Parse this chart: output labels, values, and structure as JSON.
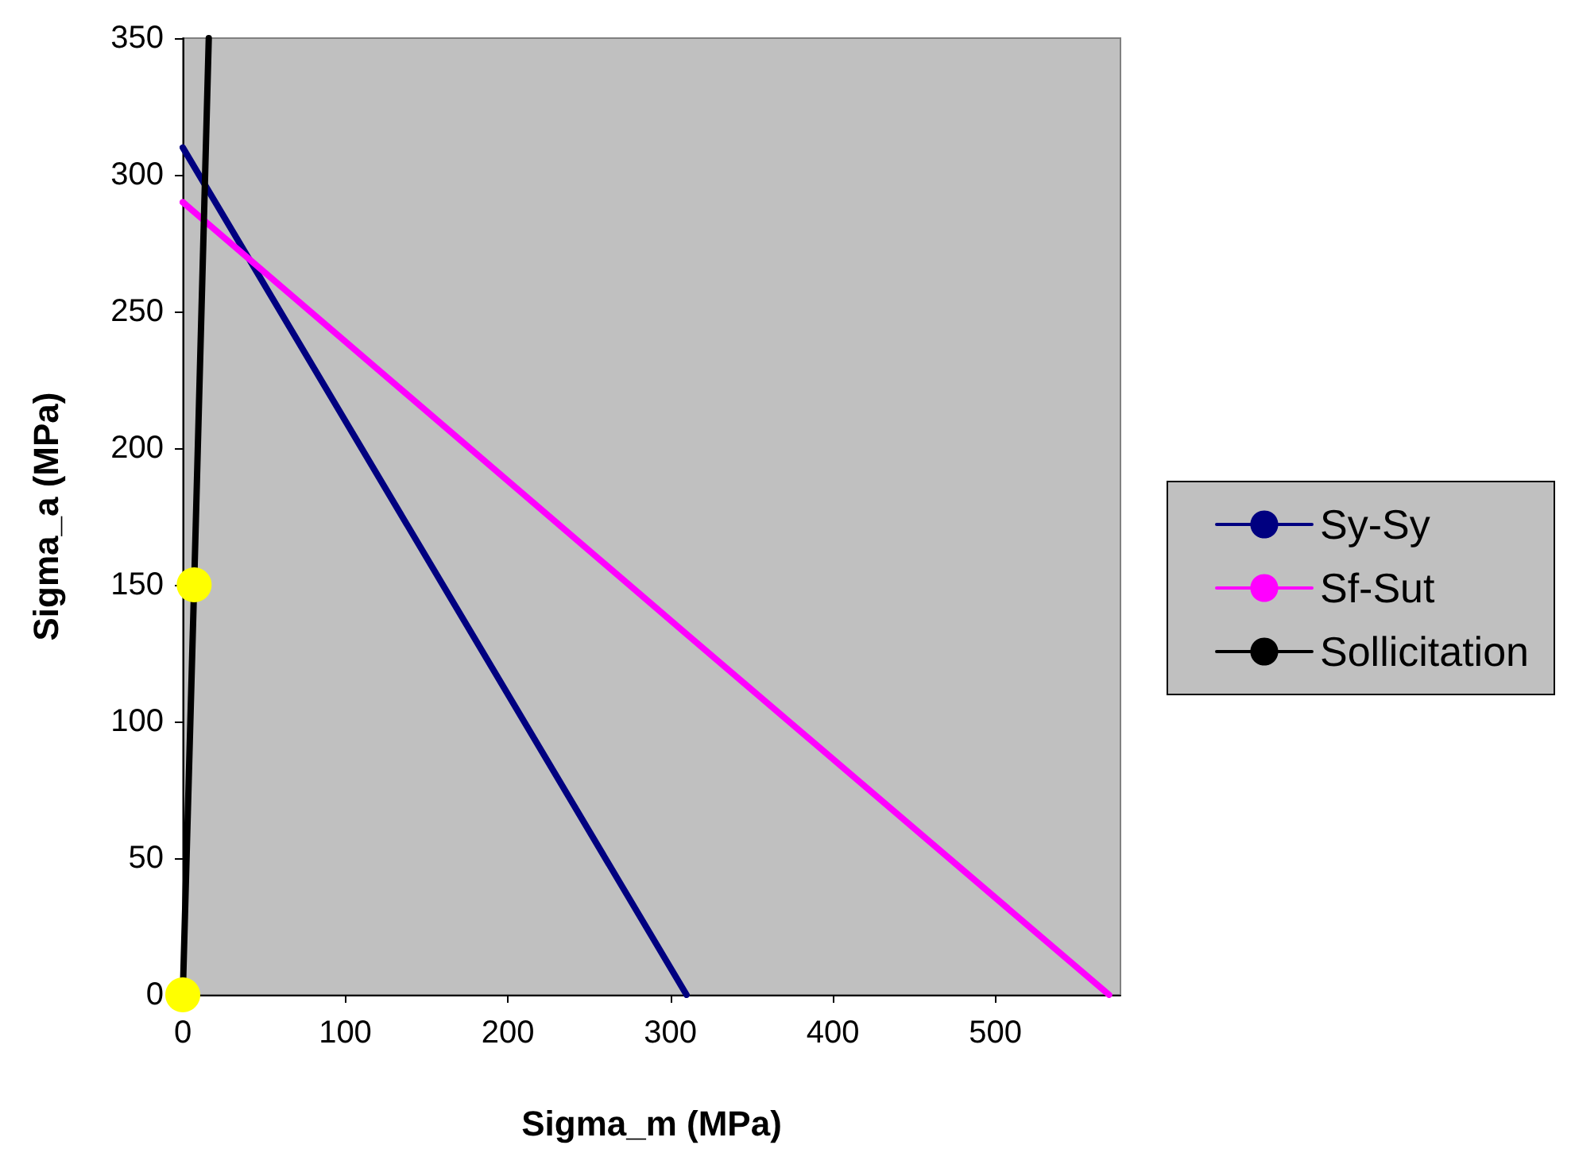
{
  "chart_data": {
    "type": "line",
    "xlabel": "Sigma_m (MPa)",
    "ylabel": "Sigma_a (MPa)",
    "xlim": [
      0,
      577
    ],
    "xticks": [
      0,
      100,
      200,
      300,
      400,
      500
    ],
    "ylim": [
      0,
      350
    ],
    "yticks": [
      0,
      50,
      100,
      150,
      200,
      250,
      300,
      350
    ],
    "grid": false,
    "legend": "right",
    "series": [
      {
        "name": "Sy-Sy",
        "color": "#000080",
        "x": [
          0,
          310
        ],
        "values": [
          310,
          0
        ],
        "marker": "none"
      },
      {
        "name": "Sf-Sut",
        "color": "#ff00ff",
        "x": [
          0,
          310,
          570
        ],
        "values": [
          290,
          132,
          0
        ],
        "marker": "none"
      },
      {
        "name": "Sollicitation",
        "color": "#000000",
        "colors": [
          "#ffff00",
          "#ffff00",
          null
        ],
        "x": [
          0,
          7,
          16
        ],
        "values": [
          0,
          150,
          350
        ],
        "marker": "circle"
      }
    ]
  }
}
